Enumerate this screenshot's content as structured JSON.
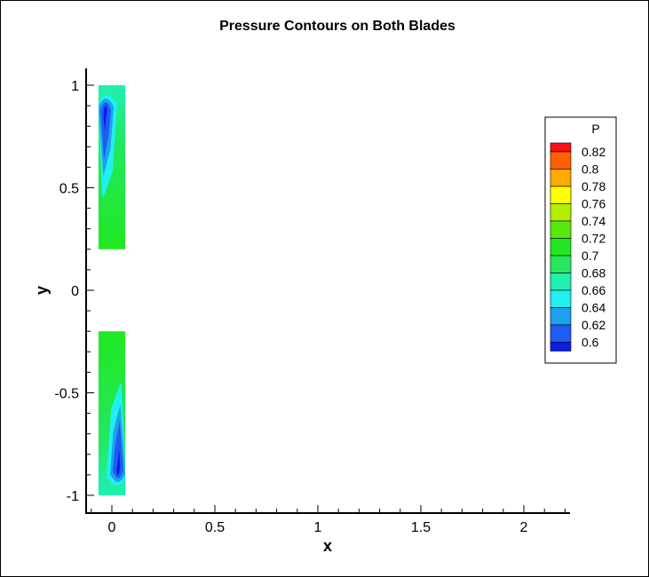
{
  "chart_data": {
    "type": "heatmap",
    "title": "Pressure Contours on Both Blades",
    "xlabel": "x",
    "ylabel": "y",
    "xlim": [
      -0.12,
      2.22
    ],
    "ylim": [
      -1.1,
      1.1
    ],
    "x_ticks": [
      0,
      0.5,
      1,
      1.5,
      2
    ],
    "x_tick_labels": [
      "0",
      "0.5",
      "1",
      "1.5",
      "2"
    ],
    "y_ticks": [
      1,
      0.5,
      0,
      -0.5,
      -1
    ],
    "y_tick_labels": [
      "1",
      "0.5",
      "0",
      "-0.5",
      "-1"
    ],
    "grid": false,
    "legend": {
      "title": "P",
      "placement": "right",
      "levels": [
        0.6,
        0.62,
        0.64,
        0.66,
        0.68,
        0.7,
        0.72,
        0.74,
        0.76,
        0.78,
        0.8,
        0.82
      ],
      "labels": [
        "0.6",
        "0.62",
        "0.64",
        "0.66",
        "0.68",
        "0.7",
        "0.72",
        "0.74",
        "0.76",
        "0.78",
        "0.8",
        "0.82"
      ],
      "colors": [
        "#0a1ee6",
        "#1f5cf5",
        "#1ea0f0",
        "#20f0f0",
        "#20f0b0",
        "#28e860",
        "#22e822",
        "#58e80c",
        "#b4ee00",
        "#ffff00",
        "#ffaa00",
        "#ff6000",
        "#ff1010"
      ]
    },
    "blades": [
      {
        "name": "upper blade",
        "x_range": [
          -0.065,
          0.065
        ],
        "y_range": [
          0.2,
          1.0
        ],
        "base_value": 0.72,
        "low_pressure_zone": {
          "x": -0.03,
          "y_range": [
            0.6,
            0.93
          ],
          "min_value": 0.61
        }
      },
      {
        "name": "lower blade",
        "x_range": [
          -0.065,
          0.065
        ],
        "y_range": [
          -1.0,
          -0.2
        ],
        "base_value": 0.72,
        "low_pressure_zone": {
          "x": 0.03,
          "y_range": [
            -0.93,
            -0.6
          ],
          "min_value": 0.61
        }
      }
    ]
  }
}
